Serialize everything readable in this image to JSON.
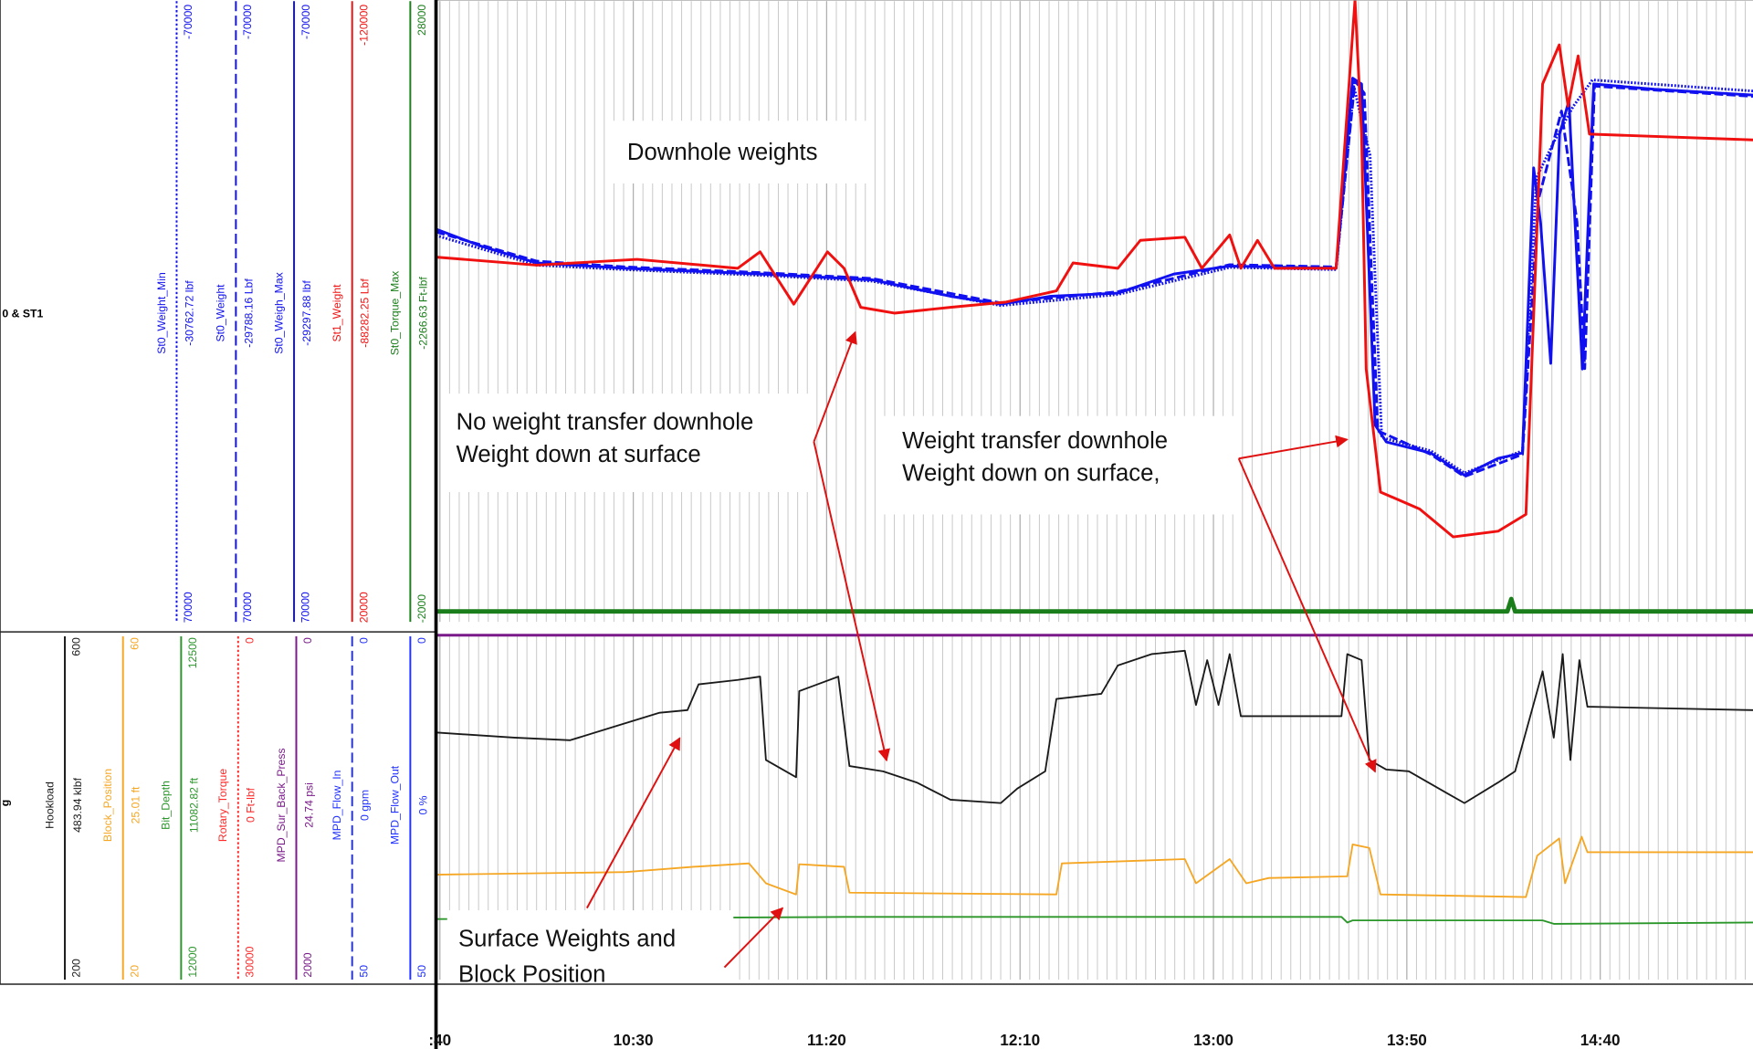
{
  "chart_data": [
    {
      "type": "line",
      "panel_label": "0 & ST1",
      "series": [
        {
          "name": "St0_Weight_Min",
          "readout": "-30762.72 lbf",
          "color": "#1010f0",
          "dash": "dotted",
          "ylim": [
            70000,
            -70000
          ],
          "x": [
            579,
            605,
            628,
            663,
            691.7,
            725,
            755.3,
            784.2,
            811.7,
            816.3,
            820.5,
            823.5,
            836.2,
            844.9,
            859.9,
            863.5,
            868,
            873,
            878,
            919.5
          ],
          "values": [
            -17000,
            -10300,
            -9300,
            -8000,
            -6700,
            -1200,
            -3700,
            -9800,
            -9300,
            -50500,
            -35000,
            28500,
            31500,
            36500,
            31500,
            -30000,
            -38000,
            -46000,
            -52000,
            -49500
          ]
        },
        {
          "name": "St0_Weight",
          "readout": "-29788.16 Lbf",
          "color": "#1010f0",
          "dash": "dashed",
          "ylim": [
            70000,
            -70000
          ],
          "x": [
            579,
            605,
            628,
            663,
            691.7,
            725,
            755.3,
            784.2,
            811.7,
            816.6,
            819,
            822.5,
            836.2,
            844.9,
            859.9,
            864,
            870,
            874,
            876,
            878.5,
            919.5
          ],
          "values": [
            -17800,
            -11200,
            -9900,
            -8600,
            -7300,
            -1800,
            -4300,
            -10400,
            -9900,
            -51800,
            -49000,
            27000,
            32300,
            37300,
            32300,
            -25000,
            -45000,
            -20000,
            13000,
            -50600,
            -48300
          ]
        },
        {
          "name": "St0_Weigh_Max",
          "readout": "-29297.88 lbf",
          "color": "#1010f0",
          "dash": "solid",
          "ylim": [
            70000,
            -70000
          ],
          "x": [
            579,
            590.6,
            605,
            628,
            663,
            691.7,
            712,
            725,
            738,
            755.3,
            769.8,
            784.2,
            811.7,
            816,
            818.3,
            821.8,
            824.7,
            836.2,
            844.9,
            853.6,
            859.9,
            862.8,
            864.6,
            867.2,
            869.5,
            871.9,
            875.4,
            878.3,
            894,
            919.5
          ],
          "values": [
            -18400,
            -14600,
            -10800,
            -9600,
            -8300,
            -7000,
            -3300,
            -1500,
            -3300,
            -4000,
            -8300,
            -10100,
            -9600,
            -52400,
            -51100,
            25700,
            29500,
            32000,
            37000,
            33200,
            32000,
            -32200,
            -19600,
            11800,
            -39800,
            -47300,
            13100,
            -51100,
            -49900,
            -48600
          ]
        },
        {
          "name": "St1_Weight",
          "readout": "-88282.25 Lbf",
          "color": "#f01010",
          "dash": "solid",
          "ylim": [
            20000,
            -120000
          ],
          "x": [
            579,
            605,
            631,
            657,
            662.8,
            671.5,
            680.2,
            684.5,
            688.8,
            697.5,
            712,
            726.4,
            739.4,
            743.7,
            755.3,
            761.1,
            772.6,
            777,
            784.2,
            787.1,
            791.4,
            795.8,
            811.7,
            816.6,
            818.3,
            819.5,
            823.2,
            833.3,
            842,
            853.6,
            860.8,
            865.1,
            869.4,
            871.7,
            874.3,
            877.2,
            919.5
          ],
          "values": [
            -62100,
            -60300,
            -61600,
            -59600,
            -63300,
            -51500,
            -63300,
            -59600,
            -50800,
            -49500,
            -50800,
            -52000,
            -54500,
            -60800,
            -59600,
            -65900,
            -66600,
            -59600,
            -67100,
            -59600,
            -65900,
            -59600,
            -59600,
            -120000,
            -89800,
            -36900,
            -9200,
            -5400,
            900,
            -400,
            -4200,
            -101100,
            -109900,
            -96100,
            -107400,
            -89800,
            -88500
          ]
        },
        {
          "name": "St0_Torque_Max",
          "readout": "-2266.63 Ft-lbf",
          "color": "#1a7f1a",
          "dash": "solid",
          "ylim": [
            -2000,
            28000
          ],
          "x": [
            579,
            856,
            857,
            858,
            919.5
          ],
          "values": [
            -1500,
            -1500,
            -900,
            -1500,
            -1500
          ]
        }
      ],
      "annotations": [
        {
          "lines": [
            "Downhole weights"
          ]
        },
        {
          "lines": [
            "No weight transfer downhole",
            "Weight down at surface"
          ]
        },
        {
          "lines": [
            "Weight transfer downhole",
            "Weight down on surface,"
          ]
        }
      ]
    },
    {
      "type": "line",
      "panel_label": "g",
      "xlim": [
        579,
        919.5
      ],
      "xticks": [
        {
          "value": 580,
          "label": ":40"
        },
        {
          "value": 630,
          "label": "10:30"
        },
        {
          "value": 680,
          "label": "11:20"
        },
        {
          "value": 730,
          "label": "12:10"
        },
        {
          "value": 780,
          "label": "13:00"
        },
        {
          "value": 830,
          "label": "13:50"
        },
        {
          "value": 880,
          "label": "14:40"
        }
      ],
      "series": [
        {
          "name": "Hookload",
          "readout": "483.94 klbf",
          "color": "#1a1a1a",
          "dash": "solid",
          "ylim": [
            200,
            600
          ],
          "x": [
            579,
            599.2,
            613.7,
            625.2,
            636.8,
            644,
            646.9,
            657,
            662.8,
            664.3,
            672.1,
            672.9,
            683,
            685.9,
            694.6,
            703.3,
            712,
            725,
            729.3,
            736.5,
            739.4,
            751,
            755.3,
            764,
            772.6,
            775.5,
            778.4,
            781.3,
            784.2,
            787.1,
            795.8,
            813.1,
            814.6,
            818.3,
            820.3,
            824.7,
            830.5,
            840.6,
            844.9,
            853.6,
            858,
            865.1,
            868,
            870.3,
            872.3,
            874.6,
            876.7,
            919.5
          ],
          "values": [
            487,
            481,
            478,
            494,
            510,
            513,
            543,
            548,
            552,
            455,
            435,
            535,
            552,
            448,
            442,
            429,
            409,
            405,
            422,
            442,
            526,
            532,
            565,
            578,
            582,
            519,
            571,
            519,
            578,
            506,
            506,
            506,
            578,
            571,
            455,
            444,
            442,
            416,
            405,
            429,
            442,
            558,
            481,
            578,
            455,
            571,
            517,
            513
          ]
        },
        {
          "name": "Block_Position",
          "readout": "25.01 ft",
          "color": "#f5a623",
          "dash": "solid",
          "ylim": [
            20,
            60
          ],
          "x": [
            579,
            628.1,
            645.5,
            659.9,
            664.3,
            672.1,
            672.9,
            684.5,
            685.9,
            739.4,
            740.8,
            772.6,
            775.5,
            784.2,
            788.5,
            794.3,
            814.6,
            816,
            820.3,
            823.2,
            860.8,
            863.7,
            869.4,
            870.9,
            875.2,
            876.7,
            919.5
          ],
          "values": [
            32.2,
            32.5,
            33.1,
            33.5,
            31.2,
            29.9,
            33.4,
            33.1,
            30.1,
            29.9,
            33.5,
            34,
            31.2,
            34,
            31.2,
            31.8,
            32,
            35.7,
            35.3,
            29.9,
            29.6,
            34.4,
            36.4,
            31.2,
            36.6,
            34.8,
            34.8
          ]
        },
        {
          "name": "Bit_Depth",
          "readout": "11082.82 ft",
          "color": "#2a962a",
          "dash": "solid",
          "ylim": [
            12000,
            12500
          ],
          "x": [
            579,
            685,
            813.1,
            814.6,
            816,
            865.1,
            868,
            919.5
          ],
          "values": [
            12088,
            12091,
            12091,
            12083,
            12086,
            12086,
            12081,
            12083
          ]
        },
        {
          "name": "Rotary_Torque",
          "readout": "0 Ft-lbf",
          "color": "#ff2a2a",
          "dash": "dotted",
          "ylim": [
            30000,
            0
          ]
        },
        {
          "name": "MPD_Sur_Back_Press",
          "readout": "24.74 psi",
          "color": "#7a1a8a",
          "dash": "solid",
          "ylim": [
            2000,
            0
          ],
          "x": [
            579,
            919.5
          ],
          "values": [
            0,
            0
          ]
        },
        {
          "name": "MPD_Flow_In",
          "readout": "0 gpm",
          "color": "#2030ff",
          "dash": "dashed",
          "ylim": [
            50,
            0
          ]
        },
        {
          "name": "MPD_Flow_Out",
          "readout": "0 %",
          "color": "#2030ff",
          "dash": "solid",
          "ylim": [
            50,
            0
          ]
        }
      ],
      "annotations": [
        {
          "lines": [
            "Surface Weights and",
            "Block Position"
          ]
        }
      ]
    }
  ]
}
